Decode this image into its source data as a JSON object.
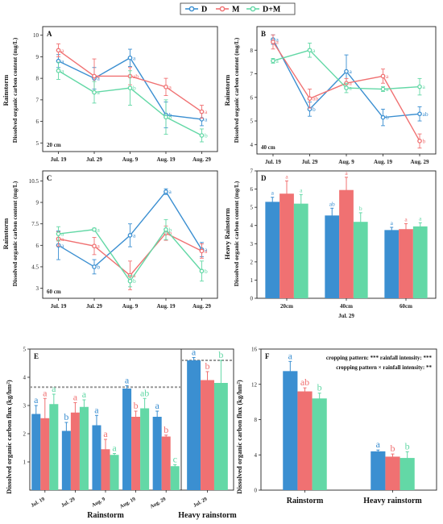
{
  "colors": {
    "D": "#3b8fd1",
    "M": "#f07172",
    "DM": "#63d8a6",
    "ref_line": "#999999"
  },
  "legend": {
    "D": "D",
    "M": "M",
    "DM": "D+M"
  },
  "chart_data": [
    {
      "panel": "A",
      "type": "line",
      "side_label": "Rainstorm",
      "ylabel": "Dissolved organic carbon content (mg/L)",
      "depth_label": "20 cm",
      "categories": [
        "Jul. 19",
        "Jul. 29",
        "Aug. 9",
        "Aug. 19",
        "Aug. 29"
      ],
      "ylim": [
        4.6,
        10.4
      ],
      "series": [
        {
          "name": "D",
          "values": [
            8.8,
            8.0,
            8.95,
            6.3,
            6.1
          ],
          "err": [
            0.3,
            0.5,
            0.4,
            0.6,
            0.3
          ],
          "sig": [
            "a",
            "a",
            "a",
            "b",
            "a"
          ]
        },
        {
          "name": "M",
          "values": [
            9.3,
            8.1,
            8.1,
            7.6,
            6.45
          ],
          "err": [
            0.3,
            0.8,
            0.4,
            0.4,
            0.3
          ],
          "sig": [
            "a",
            "a",
            "ab",
            "a",
            "a"
          ]
        },
        {
          "name": "D+M",
          "values": [
            8.35,
            7.35,
            7.55,
            6.2,
            5.35
          ],
          "err": [
            0.4,
            0.5,
            0.8,
            0.8,
            0.3
          ],
          "sig": [
            "a",
            "a",
            "b",
            "b",
            "b"
          ]
        }
      ]
    },
    {
      "panel": "B",
      "type": "line",
      "side_label": "Rainstorm",
      "ylabel": "Dissolved organic carbon content (mg/L)",
      "depth_label": "40 cm",
      "categories": [
        "Jul. 19",
        "Jul. 29",
        "Aug. 9",
        "Aug. 19",
        "Aug. 29"
      ],
      "ylim": [
        3.6,
        9.0
      ],
      "yticks": [
        4,
        5,
        6,
        7,
        8
      ],
      "series": [
        {
          "name": "D",
          "values": [
            8.45,
            5.5,
            7.1,
            5.15,
            5.3
          ],
          "err": [
            0.2,
            0.3,
            0.7,
            0.35,
            0.3
          ],
          "sig": [
            "a",
            "b",
            "a",
            "b",
            "ab"
          ]
        },
        {
          "name": "M",
          "values": [
            8.35,
            5.95,
            6.6,
            6.9,
            4.15
          ],
          "err": [
            0.3,
            0.4,
            0.2,
            0.3,
            0.3
          ],
          "sig": [
            "a",
            "ab",
            "a",
            "a",
            "b"
          ]
        },
        {
          "name": "D+M",
          "values": [
            7.55,
            8.0,
            6.4,
            6.35,
            6.45
          ],
          "err": [
            0.1,
            0.3,
            0.2,
            0.1,
            0.35
          ],
          "sig": [
            "a",
            "a",
            "a",
            "a",
            "a"
          ]
        }
      ]
    },
    {
      "panel": "C",
      "type": "line",
      "side_label": "Rainstorm",
      "ylabel": "Dissolved organic carbon content (mg/L)",
      "depth_label": "60 cm",
      "categories": [
        "Jul. 19",
        "Jul. 29",
        "Aug. 9",
        "Aug. 19",
        "Aug. 29"
      ],
      "ylim": [
        2.3,
        11.2
      ],
      "yticks": [
        3.0,
        4.5,
        6.0,
        7.5,
        9.0,
        10.5
      ],
      "series": [
        {
          "name": "D",
          "values": [
            6.0,
            4.5,
            6.7,
            9.75,
            5.7
          ],
          "err": [
            1.0,
            0.5,
            0.8,
            0.2,
            0.5
          ],
          "sig": [
            "a",
            "b",
            "a",
            "a",
            "a"
          ]
        },
        {
          "name": "M",
          "values": [
            6.45,
            5.95,
            3.9,
            6.85,
            5.6
          ],
          "err": [
            0.5,
            0.6,
            1.0,
            0.5,
            0.5
          ],
          "sig": [
            "a",
            "a",
            "a",
            "b",
            "a"
          ]
        },
        {
          "name": "D+M",
          "values": [
            6.8,
            7.1,
            3.5,
            7.1,
            4.2
          ],
          "err": [
            0.5,
            0.1,
            0.4,
            0.7,
            0.7
          ],
          "sig": [
            "a",
            "a",
            "b",
            "b",
            "b"
          ]
        }
      ]
    },
    {
      "panel": "D",
      "type": "bar",
      "side_label": "Heavy Rainstorm",
      "ylabel": "Dissolved organic carbon content (mg/L)",
      "categories": [
        "20cm",
        "40cm",
        "60cm"
      ],
      "xlabel": "Jul. 29",
      "ylim": [
        0,
        7
      ],
      "yticks": [
        0,
        1,
        2,
        3,
        4,
        5,
        6,
        7
      ],
      "series": [
        {
          "name": "D",
          "values": [
            5.3,
            4.55,
            3.75
          ],
          "err": [
            0.25,
            0.4,
            0.15
          ],
          "sig": [
            "a",
            "ab",
            "a"
          ]
        },
        {
          "name": "M",
          "values": [
            5.75,
            5.95,
            3.8
          ],
          "err": [
            0.7,
            0.7,
            0.3
          ],
          "sig": [
            "a",
            "a",
            "a"
          ]
        },
        {
          "name": "D+M",
          "values": [
            5.2,
            4.2,
            3.95
          ],
          "err": [
            0.5,
            0.5,
            0.2
          ],
          "sig": [
            "a",
            "b",
            "a"
          ]
        }
      ]
    },
    {
      "panel": "E",
      "type": "bar",
      "ylabel": "Dissolved organic carbon flux (kg/hm²)",
      "ylim": [
        0,
        5
      ],
      "yticks": [
        1,
        2,
        3,
        4,
        5
      ],
      "ref_line": 3.65,
      "groups": [
        {
          "label": "Rainstorm",
          "categories": [
            "Jul. 19",
            "Jul. 29",
            "Aug. 9",
            "Aug. 19",
            "Aug. 29"
          ],
          "series": [
            {
              "name": "D",
              "values": [
                2.7,
                2.1,
                2.3,
                3.6,
                2.6
              ],
              "err": [
                0.3,
                0.3,
                0.35,
                0.1,
                0.2
              ],
              "sig": [
                "a",
                "b",
                "a",
                "a",
                "a"
              ]
            },
            {
              "name": "M",
              "values": [
                2.55,
                2.75,
                1.45,
                2.6,
                1.9
              ],
              "err": [
                0.7,
                0.35,
                0.35,
                0.2,
                0.05
              ],
              "sig": [
                "a",
                "a",
                "a",
                "b",
                "b"
              ]
            },
            {
              "name": "D+M",
              "values": [
                3.05,
                2.95,
                1.25,
                2.9,
                0.85
              ],
              "err": [
                0.35,
                0.25,
                0.05,
                0.35,
                0.05
              ],
              "sig": [
                "a",
                "a",
                "a",
                "ab",
                "c"
              ]
            }
          ]
        },
        {
          "label": "Heavy rainstorm",
          "categories": [
            "Jul. 29"
          ],
          "series": [
            {
              "name": "D",
              "values": [
                4.6
              ],
              "err": [
                0.1
              ],
              "sig": [
                "a"
              ]
            },
            {
              "name": "M",
              "values": [
                3.9
              ],
              "err": [
                0.3
              ],
              "sig": [
                "b"
              ]
            },
            {
              "name": "D+M",
              "values": [
                3.8
              ],
              "err": [
                0.8
              ],
              "sig": [
                "b"
              ]
            }
          ]
        }
      ]
    },
    {
      "panel": "F",
      "type": "bar",
      "ylabel": "Dissolved organic carbon flux (kg/hm²)",
      "categories": [
        "Rainstorm",
        "Heavy rainstorm"
      ],
      "ylim": [
        0,
        16
      ],
      "yticks": [
        0,
        4,
        8,
        12,
        16
      ],
      "stats_line1": "cropping pattern: ***   rainfall intensity: ***",
      "stats_line2": "cropping pattern × rainfall intensity: **",
      "series": [
        {
          "name": "D",
          "values": [
            13.5,
            4.4
          ],
          "err": [
            1.1,
            0.15
          ],
          "sig": [
            "a",
            "a"
          ]
        },
        {
          "name": "M",
          "values": [
            11.2,
            3.8
          ],
          "err": [
            0.4,
            0.3
          ],
          "sig": [
            "ab",
            "b"
          ]
        },
        {
          "name": "D+M",
          "values": [
            10.4,
            3.65
          ],
          "err": [
            0.6,
            0.7
          ],
          "sig": [
            "b",
            "b"
          ]
        }
      ]
    }
  ]
}
